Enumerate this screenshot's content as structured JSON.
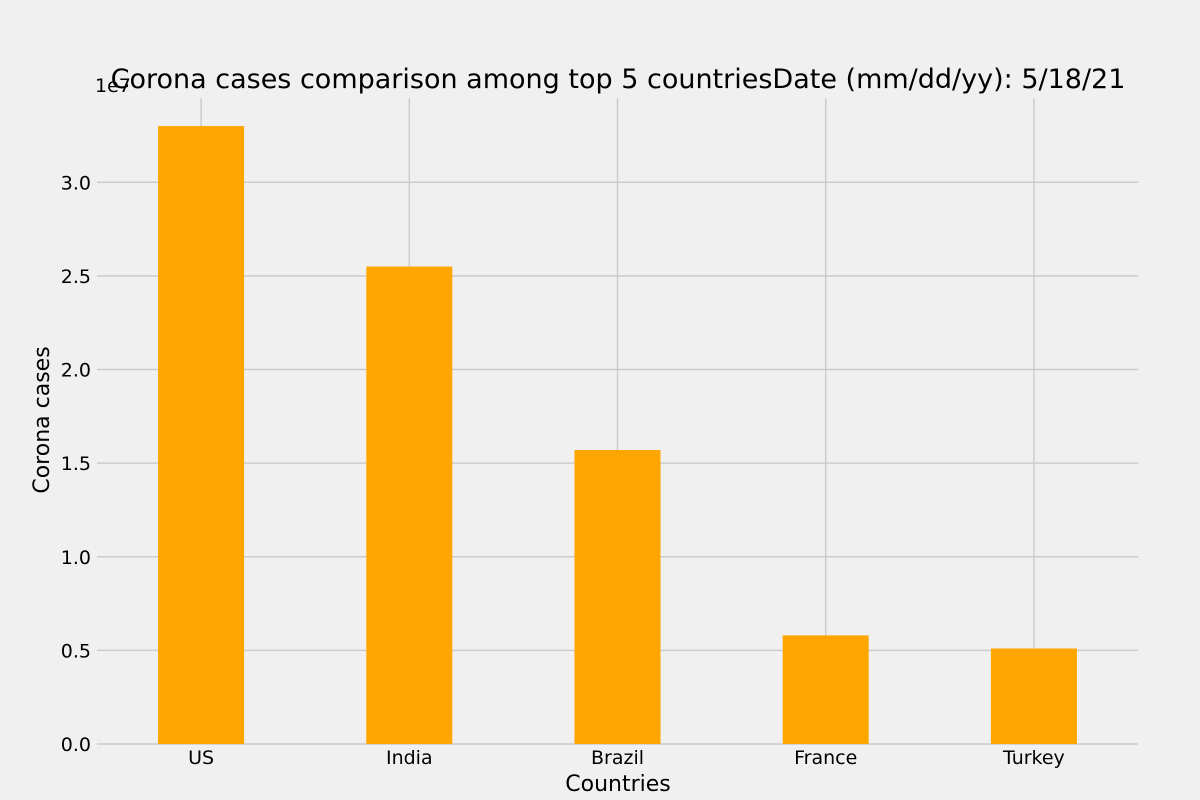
{
  "chart_data": {
    "type": "bar",
    "title": "Corona cases comparison among top 5 countriesDate (mm/dd/yy): 5/18/21",
    "xlabel": "Countries",
    "ylabel": "Corona cases",
    "y_offset_label": "1e7",
    "categories": [
      "US",
      "India",
      "Brazil",
      "France",
      "Turkey"
    ],
    "values": [
      33000000,
      25500000,
      15700000,
      5800000,
      5100000
    ],
    "ylim": [
      0,
      34500000
    ],
    "yticks": [
      0,
      5000000,
      10000000,
      15000000,
      20000000,
      25000000,
      30000000
    ],
    "ytick_labels": [
      "0.0",
      "0.5",
      "1.0",
      "1.5",
      "2.0",
      "2.5",
      "3.0"
    ],
    "bar_color": "#ffa500",
    "grid": true,
    "background_color": "#f0f0f0",
    "grid_color": "#cbcbcb"
  }
}
